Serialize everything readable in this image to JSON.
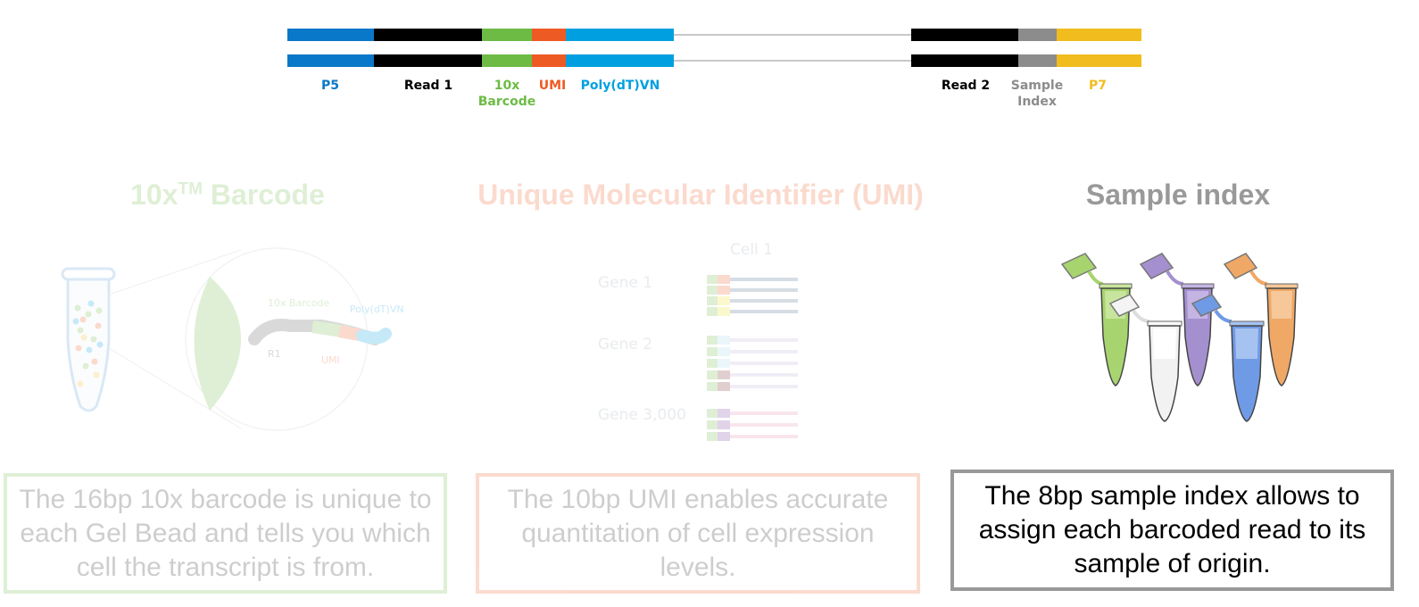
{
  "construct": {
    "labels": {
      "p5": "P5",
      "read1": "Read 1",
      "barcode_10x": "10x",
      "barcode_word": "Barcode",
      "umi": "UMI",
      "polydt": "Poly(dT)VN",
      "read2": "Read 2",
      "sample_word": "Sample",
      "index_word": "Index",
      "p7": "P7"
    },
    "colors": {
      "p5": "#0a78c8",
      "read": "#000000",
      "barcode": "#6dbb45",
      "umi": "#ee5a24",
      "polydt": "#00a0e0",
      "linker": "#c8c8c8",
      "sample_index": "#8c8c8c",
      "p7": "#f0bc1e"
    }
  },
  "columns": {
    "barcode": {
      "title_main": "10x",
      "title_sup": "TM",
      "title_rest": " Barcode",
      "color": "#6dbb45",
      "description": "The 16bp 10x barcode is unique to each Gel Bead and tells you which cell the transcript is from.",
      "figure": {
        "barcode_label": "10x Barcode",
        "polydt_label": "Poly(dT)VN",
        "r1_label": "R1",
        "umi_label": "UMI"
      }
    },
    "umi": {
      "title": "Unique Molecular Identifier (UMI)",
      "color": "#ee5a24",
      "description": "The 10bp UMI enables accurate quantitation of cell expression levels.",
      "figure": {
        "cell_label": "Cell 1",
        "genes": [
          "Gene 1",
          "Gene 2",
          "Gene 3,000"
        ]
      }
    },
    "sample": {
      "title": "Sample index",
      "color": "#999999",
      "description": "The 8bp sample index allows to assign each barcoded read to its sample of origin."
    }
  }
}
